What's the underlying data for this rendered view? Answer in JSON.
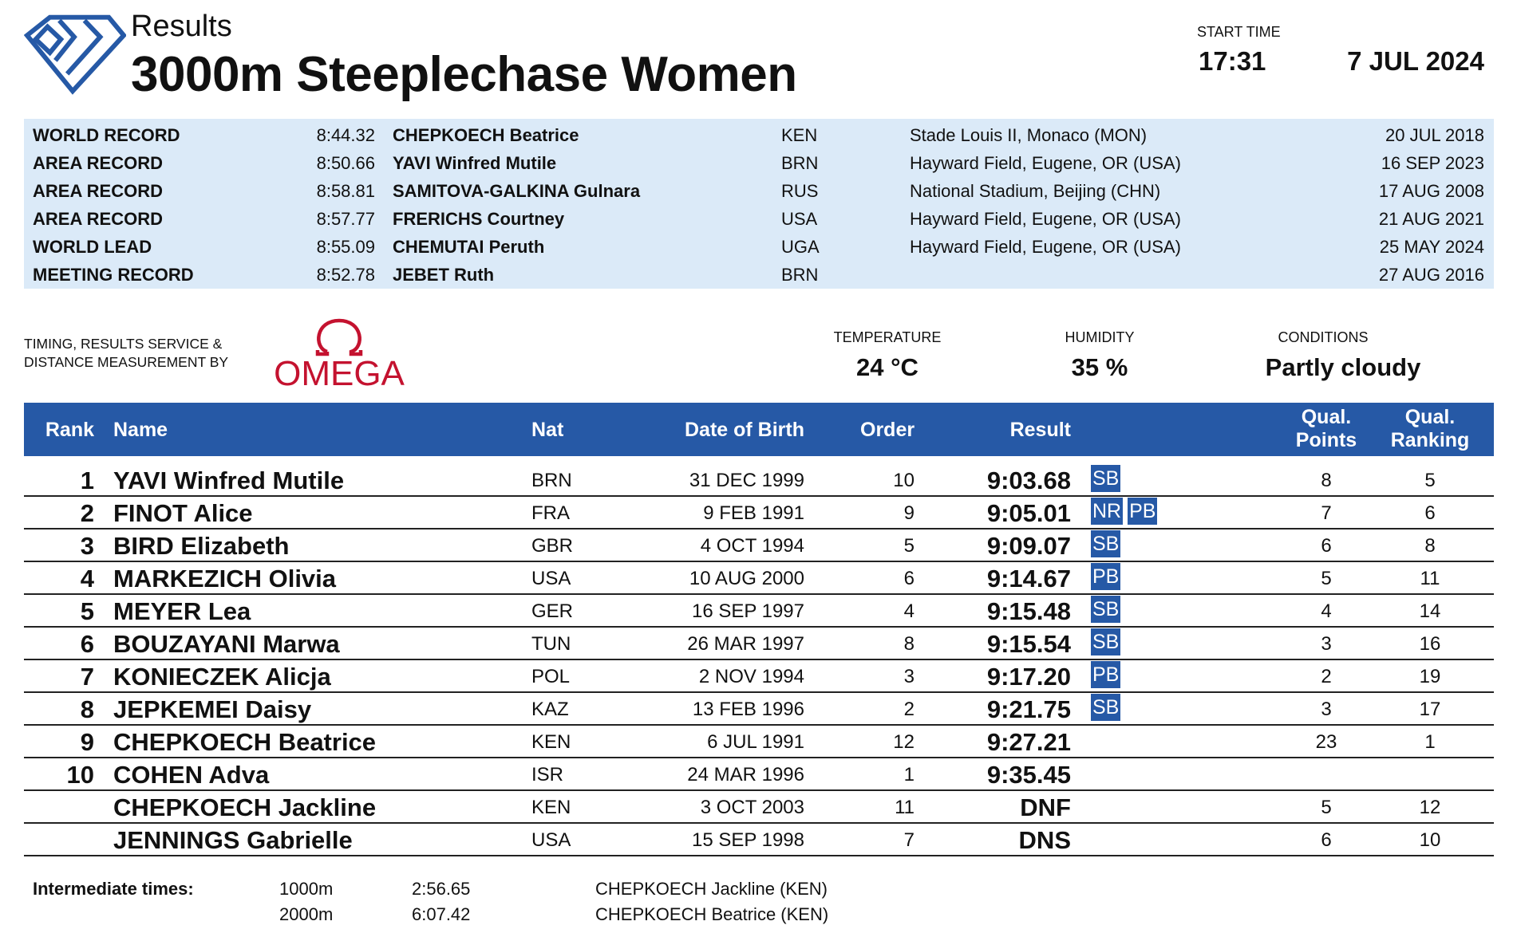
{
  "header": {
    "subtitle": "Results",
    "title": "3000m Steeplechase Women",
    "start_time_label": "START TIME",
    "start_time": "17:31",
    "date": "7 JUL 2024"
  },
  "colors": {
    "brand_blue": "#2659a6",
    "records_bg": "#dbeaf8",
    "omega_red": "#c4122f"
  },
  "records": [
    {
      "label": "WORLD RECORD",
      "time": "8:44.32",
      "name": "CHEPKOECH Beatrice",
      "nat": "KEN",
      "venue": "Stade Louis II, Monaco (MON)",
      "date": "20 JUL 2018"
    },
    {
      "label": "AREA RECORD",
      "time": "8:50.66",
      "name": "YAVI Winfred Mutile",
      "nat": "BRN",
      "venue": "Hayward Field, Eugene, OR (USA)",
      "date": "16 SEP 2023"
    },
    {
      "label": "AREA RECORD",
      "time": "8:58.81",
      "name": "SAMITOVA-GALKINA Gulnara",
      "nat": "RUS",
      "venue": "National Stadium, Beijing (CHN)",
      "date": "17 AUG 2008"
    },
    {
      "label": "AREA RECORD",
      "time": "8:57.77",
      "name": "FRERICHS Courtney",
      "nat": "USA",
      "venue": "Hayward Field, Eugene, OR (USA)",
      "date": "21 AUG 2021"
    },
    {
      "label": "WORLD LEAD",
      "time": "8:55.09",
      "name": "CHEMUTAI Peruth",
      "nat": "UGA",
      "venue": "Hayward Field, Eugene, OR (USA)",
      "date": "25 MAY 2024"
    },
    {
      "label": "MEETING RECORD",
      "time": "8:52.78",
      "name": "JEBET Ruth",
      "nat": "BRN",
      "venue": "",
      "date": "27 AUG 2016"
    }
  ],
  "timing": {
    "line1": "TIMING, RESULTS SERVICE &",
    "line2": "DISTANCE MEASUREMENT BY",
    "brand": "OMEGA"
  },
  "weather": {
    "temperature_label": "TEMPERATURE",
    "temperature": "24 °C",
    "humidity_label": "HUMIDITY",
    "humidity": "35 %",
    "conditions_label": "CONDITIONS",
    "conditions": "Partly cloudy"
  },
  "columns": {
    "rank": "Rank",
    "name": "Name",
    "nat": "Nat",
    "dob": "Date of Birth",
    "order": "Order",
    "result": "Result",
    "qp1": "Qual.",
    "qp2": "Points",
    "qr1": "Qual.",
    "qr2": "Ranking"
  },
  "results": [
    {
      "rank": "1",
      "name": "YAVI Winfred Mutile",
      "nat": "BRN",
      "dob": "31 DEC 1999",
      "order": "10",
      "result": "9:03.68",
      "badges": [
        "SB"
      ],
      "qp": "8",
      "qr": "5"
    },
    {
      "rank": "2",
      "name": "FINOT Alice",
      "nat": "FRA",
      "dob": "9 FEB 1991",
      "order": "9",
      "result": "9:05.01",
      "badges": [
        "NR",
        "PB"
      ],
      "qp": "7",
      "qr": "6"
    },
    {
      "rank": "3",
      "name": "BIRD Elizabeth",
      "nat": "GBR",
      "dob": "4 OCT 1994",
      "order": "5",
      "result": "9:09.07",
      "badges": [
        "SB"
      ],
      "qp": "6",
      "qr": "8"
    },
    {
      "rank": "4",
      "name": "MARKEZICH Olivia",
      "nat": "USA",
      "dob": "10 AUG 2000",
      "order": "6",
      "result": "9:14.67",
      "badges": [
        "PB"
      ],
      "qp": "5",
      "qr": "11"
    },
    {
      "rank": "5",
      "name": "MEYER Lea",
      "nat": "GER",
      "dob": "16 SEP 1997",
      "order": "4",
      "result": "9:15.48",
      "badges": [
        "SB"
      ],
      "qp": "4",
      "qr": "14"
    },
    {
      "rank": "6",
      "name": "BOUZAYANI Marwa",
      "nat": "TUN",
      "dob": "26 MAR 1997",
      "order": "8",
      "result": "9:15.54",
      "badges": [
        "SB"
      ],
      "qp": "3",
      "qr": "16"
    },
    {
      "rank": "7",
      "name": "KONIECZEK Alicja",
      "nat": "POL",
      "dob": "2 NOV 1994",
      "order": "3",
      "result": "9:17.20",
      "badges": [
        "PB"
      ],
      "qp": "2",
      "qr": "19"
    },
    {
      "rank": "8",
      "name": "JEPKEMEI Daisy",
      "nat": "KAZ",
      "dob": "13 FEB 1996",
      "order": "2",
      "result": "9:21.75",
      "badges": [
        "SB"
      ],
      "qp": "3",
      "qr": "17"
    },
    {
      "rank": "9",
      "name": "CHEPKOECH Beatrice",
      "nat": "KEN",
      "dob": "6 JUL 1991",
      "order": "12",
      "result": "9:27.21",
      "badges": [],
      "qp": "23",
      "qr": "1"
    },
    {
      "rank": "10",
      "name": "COHEN Adva",
      "nat": "ISR",
      "dob": "24 MAR 1996",
      "order": "1",
      "result": "9:35.45",
      "badges": [],
      "qp": "",
      "qr": ""
    },
    {
      "rank": "",
      "name": "CHEPKOECH Jackline",
      "nat": "KEN",
      "dob": "3 OCT 2003",
      "order": "11",
      "result": "DNF",
      "badges": [],
      "qp": "5",
      "qr": "12"
    },
    {
      "rank": "",
      "name": "JENNINGS Gabrielle",
      "nat": "USA",
      "dob": "15 SEP 1998",
      "order": "7",
      "result": "DNS",
      "badges": [],
      "qp": "6",
      "qr": "10"
    }
  ],
  "intermediate": {
    "label": "Intermediate times:",
    "splits": [
      {
        "distance": "1000m",
        "time": "2:56.65",
        "leader": "CHEPKOECH Jackline (KEN)"
      },
      {
        "distance": "2000m",
        "time": "6:07.42",
        "leader": "CHEPKOECH Beatrice (KEN)"
      }
    ]
  }
}
